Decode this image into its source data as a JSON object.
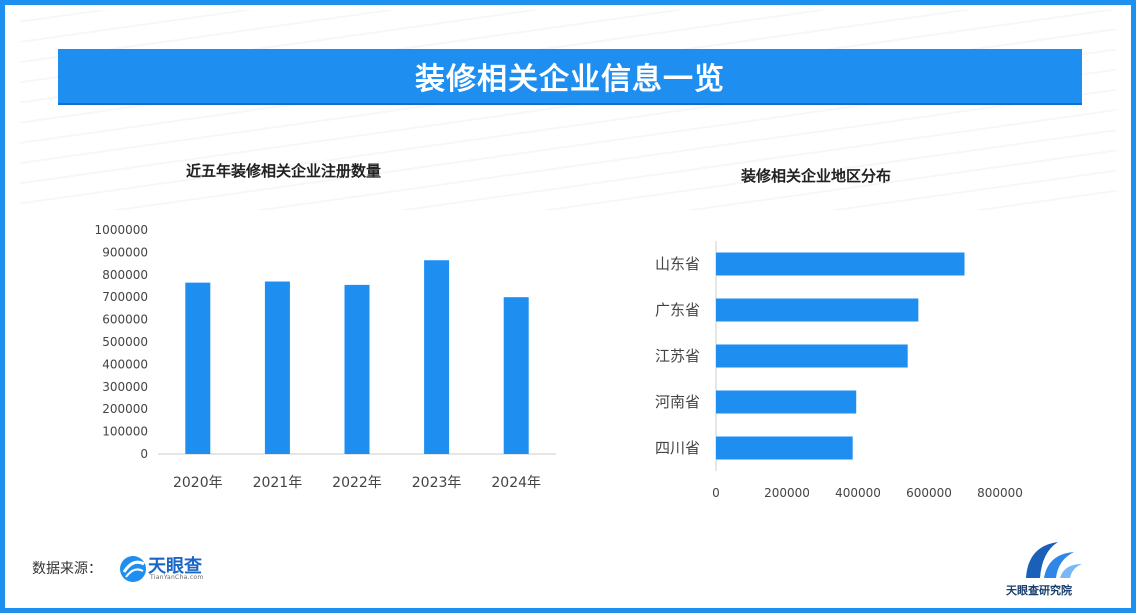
{
  "banner": {
    "title": "装修相关企业信息一览"
  },
  "chart_data": [
    {
      "type": "bar",
      "title": "近五年装修相关企业注册数量",
      "categories": [
        "2020年",
        "2021年",
        "2022年",
        "2023年",
        "2024年"
      ],
      "values": [
        765000,
        770000,
        755000,
        865000,
        700000
      ],
      "ylim": [
        0,
        1000000
      ],
      "yticks": [
        0,
        100000,
        200000,
        300000,
        400000,
        500000,
        600000,
        700000,
        800000,
        900000,
        1000000
      ],
      "xlabel": "",
      "ylabel": "",
      "color": "#1e8ef0",
      "grid": false
    },
    {
      "type": "bar",
      "orientation": "horizontal",
      "title": "装修相关企业地区分布",
      "categories": [
        "山东省",
        "广东省",
        "江苏省",
        "河南省",
        "四川省"
      ],
      "values": [
        700000,
        570000,
        540000,
        395000,
        385000
      ],
      "xlim": [
        0,
        800000
      ],
      "xticks": [
        0,
        200000,
        400000,
        600000,
        800000
      ],
      "xlabel": "",
      "ylabel": "",
      "color": "#1e8ef0",
      "grid": false
    }
  ],
  "footer": {
    "source_label": "数据来源：",
    "source_logo_name": "天眼查",
    "source_logo_sub": "TianYanCha.com",
    "right_logo_name": "天眼查研究院"
  }
}
